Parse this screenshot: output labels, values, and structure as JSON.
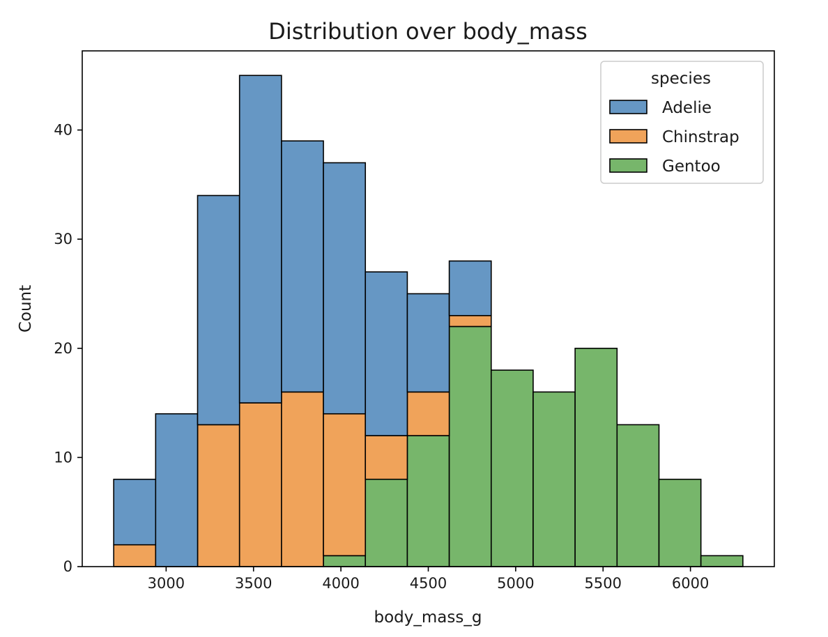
{
  "chart_data": {
    "type": "bar",
    "stacked": true,
    "title": "Distribution over body_mass",
    "xlabel": "body_mass_g",
    "ylabel": "Count",
    "xlim": [
      2520,
      6480
    ],
    "ylim": [
      0,
      47.25
    ],
    "xticks": [
      3000,
      3500,
      4000,
      4500,
      5000,
      5500,
      6000
    ],
    "yticks": [
      0,
      10,
      20,
      30,
      40
    ],
    "bin_edges": [
      2700,
      2940,
      3180,
      3420,
      3660,
      3900,
      4140,
      4380,
      4620,
      4860,
      5100,
      5340,
      5580,
      5820,
      6060,
      6300
    ],
    "series": [
      {
        "name": "Gentoo",
        "color": "#77b66b",
        "values": [
          0,
          0,
          0,
          0,
          0,
          1,
          8,
          12,
          22,
          18,
          16,
          20,
          13,
          8,
          1
        ]
      },
      {
        "name": "Chinstrap",
        "color": "#f0a35a",
        "values": [
          2,
          0,
          13,
          15,
          16,
          13,
          4,
          4,
          1,
          0,
          0,
          0,
          0,
          0,
          0
        ]
      },
      {
        "name": "Adelie",
        "color": "#6697c4",
        "values": [
          6,
          14,
          21,
          30,
          23,
          23,
          15,
          9,
          5,
          0,
          0,
          0,
          0,
          0,
          0
        ]
      }
    ],
    "legend": {
      "title": "species",
      "position": "top-right",
      "entries": [
        "Adelie",
        "Chinstrap",
        "Gentoo"
      ]
    }
  }
}
